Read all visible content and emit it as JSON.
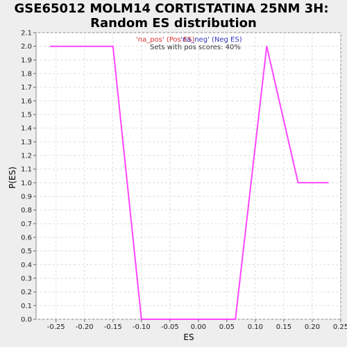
{
  "chart_data": {
    "type": "line",
    "title_lines": [
      "GSE65012 MOLM14 CORTISTATINA 25NM 3H:",
      "Random ES distribution"
    ],
    "xlabel": "ES",
    "ylabel": "P(ES)",
    "xlim": [
      -0.285,
      0.25
    ],
    "ylim": [
      0,
      2.1
    ],
    "x_ticks": [
      "-0.25",
      "-0.20",
      "-0.15",
      "-0.10",
      "-0.05",
      "0.00",
      "0.05",
      "0.10",
      "0.15",
      "0.20",
      "0.25"
    ],
    "x_tick_values": [
      -0.25,
      -0.2,
      -0.15,
      -0.1,
      -0.05,
      0.0,
      0.05,
      0.1,
      0.15,
      0.2,
      0.25
    ],
    "y_ticks": [
      "0.0",
      "0.1",
      "0.2",
      "0.3",
      "0.4",
      "0.5",
      "0.6",
      "0.7",
      "0.8",
      "0.9",
      "1.0",
      "1.1",
      "1.2",
      "1.3",
      "1.4",
      "1.5",
      "1.6",
      "1.7",
      "1.8",
      "1.9",
      "2.0",
      "2.1"
    ],
    "y_tick_values": [
      0,
      0.1,
      0.2,
      0.3,
      0.4,
      0.5,
      0.6,
      0.7,
      0.8,
      0.9,
      1.0,
      1.1,
      1.2,
      1.3,
      1.4,
      1.5,
      1.6,
      1.7,
      1.8,
      1.9,
      2.0,
      2.1
    ],
    "grid": true,
    "legend": {
      "entries": [
        {
          "label": "'na_pos' (Pos ES)",
          "color": "#dd3333"
        },
        {
          "label": "'na_neg' (Neg ES)",
          "color": "#3333bb"
        }
      ],
      "note": "Sets with pos scores: 40%",
      "note_color": "#333333",
      "placement": "top-center"
    },
    "series": [
      {
        "color": "#ff44ff",
        "x": [
          -0.26,
          -0.2,
          -0.15,
          -0.1,
          0.065,
          0.12,
          0.175,
          0.228
        ],
        "y": [
          2.0,
          2.0,
          2.0,
          0.0,
          0.0,
          2.0,
          1.0,
          1.0
        ]
      }
    ]
  }
}
